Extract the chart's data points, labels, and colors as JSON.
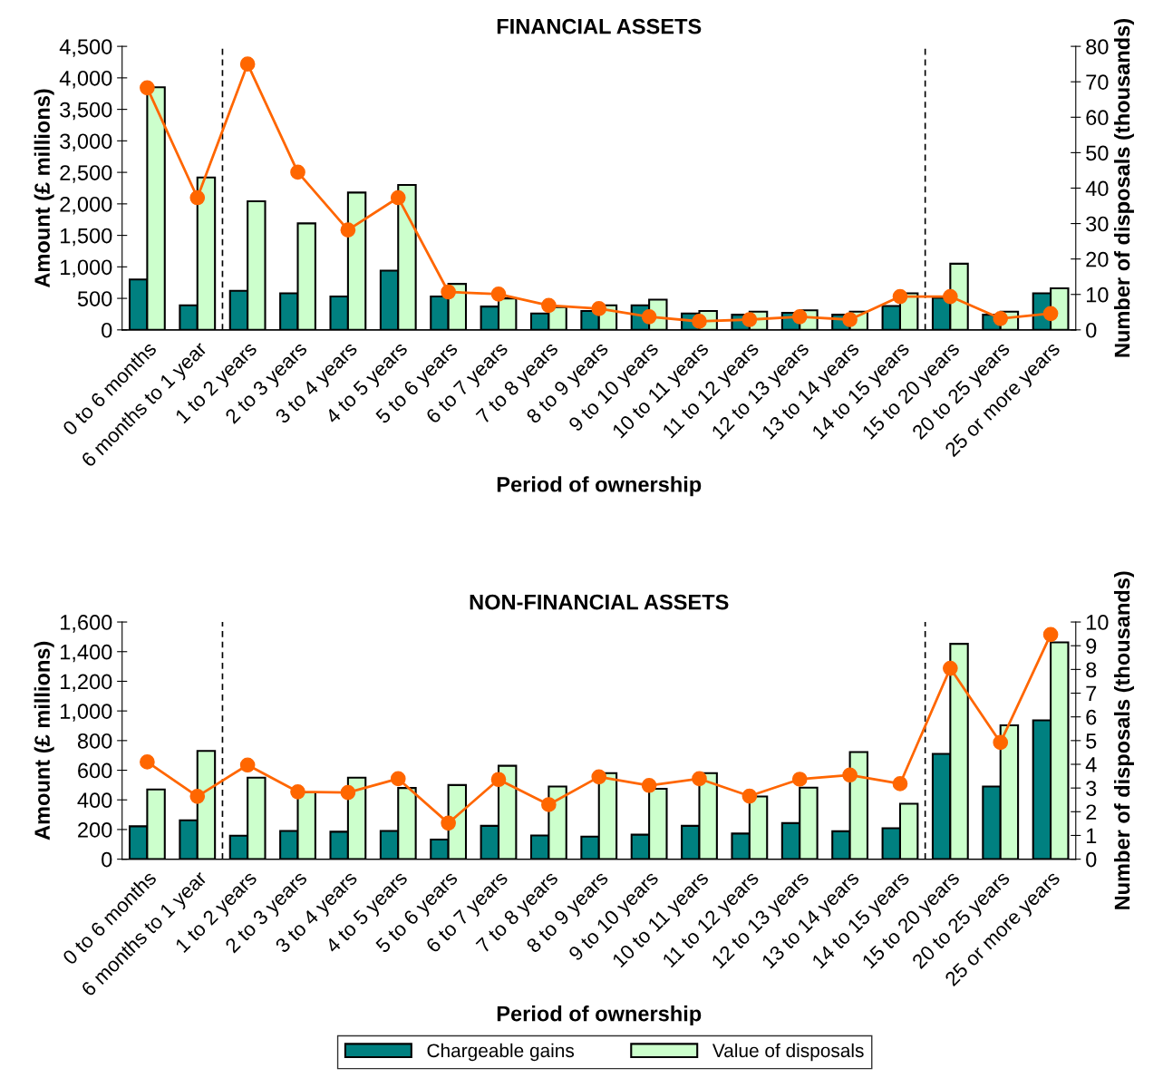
{
  "chart_data": [
    {
      "type": "bar",
      "title": "FINANCIAL ASSETS",
      "xlabel": "Period of ownership",
      "ylabel": "Amount (£ millions)",
      "y2label": "Number of disposals (thousands)",
      "categories": [
        "0 to 6 months",
        "6 months to 1 year",
        "1 to 2 years",
        "2 to 3 years",
        "3 to 4 years",
        "4 to 5 years",
        "5 to 6 years",
        "6 to 7 years",
        "7 to 8 years",
        "8 to 9 years",
        "9 to 10 years",
        "10 to 11 years",
        "11 to 12 years",
        "12 to 13 years",
        "13 to 14 years",
        "14 to 15 years",
        "15 to 20 years",
        "20 to 25 years",
        "25 or more years"
      ],
      "series": [
        {
          "name": "Chargeable gains",
          "color": "#008080",
          "values": [
            800,
            390,
            620,
            580,
            530,
            940,
            530,
            370,
            260,
            300,
            390,
            260,
            240,
            270,
            240,
            380,
            510,
            240,
            580
          ]
        },
        {
          "name": "Value of disposals",
          "color": "#ccffcc",
          "values": [
            3850,
            2420,
            2040,
            1690,
            2180,
            2300,
            730,
            500,
            360,
            390,
            480,
            300,
            290,
            310,
            290,
            580,
            1050,
            290,
            660
          ]
        },
        {
          "type": "line",
          "axis": "y2",
          "color": "#ff6600",
          "marker": "circle",
          "values": [
            68.3,
            37.3,
            75,
            44.5,
            28.2,
            37.3,
            10.7,
            10.1,
            6.9,
            6.0,
            3.7,
            2.4,
            2.9,
            3.7,
            2.9,
            9.4,
            9.4,
            3.2,
            4.6
          ]
        }
      ],
      "ylim": [
        0,
        4500
      ],
      "yticks": [
        0,
        {
          "value": 500,
          "label": "500"
        },
        {
          "value": 1000,
          "label": "1,000"
        },
        {
          "value": 1500,
          "label": "1,500"
        },
        {
          "value": 2000,
          "label": "2,000"
        },
        {
          "value": 2500,
          "label": "2,500"
        },
        {
          "value": 3000,
          "label": "3,000"
        },
        {
          "value": 3500,
          "label": "3,500"
        },
        {
          "value": 4000,
          "label": "4,000"
        },
        {
          "value": 4500,
          "label": "4,500"
        }
      ],
      "y2lim": [
        0,
        80
      ],
      "y2ticks": [
        0,
        10,
        20,
        30,
        40,
        50,
        60,
        70,
        80
      ],
      "grid": false,
      "legend": "bottom"
    },
    {
      "type": "bar",
      "title": "NON-FINANCIAL ASSETS",
      "xlabel": "Period of ownership",
      "ylabel": "Amount (£ millions)",
      "y2label": "Number of disposals (thousands)",
      "categories": [
        "0 to 6 months",
        "6 months to 1 year",
        "1 to 2 years",
        "2 to 3 years",
        "3 to 4 years",
        "4 to 5 years",
        "5 to 6 years",
        "6 to 7 years",
        "7 to 8 years",
        "8 to 9 years",
        "9 to 10 years",
        "10 to 11 years",
        "11 to 12 years",
        "12 to 13 years",
        "13 to 14 years",
        "14 to 15 years",
        "15 to 20 years",
        "20 to 25 years",
        "25 or more years"
      ],
      "series": [
        {
          "name": "Chargeable gains",
          "color": "#008080",
          "values": [
            222,
            262,
            158,
            190,
            185,
            190,
            132,
            225,
            160,
            152,
            165,
            225,
            173,
            243,
            188,
            209,
            710,
            490,
            937
          ]
        },
        {
          "name": "Value of disposals",
          "color": "#ccffcc",
          "values": [
            470,
            730,
            550,
            450,
            550,
            480,
            500,
            630,
            490,
            580,
            475,
            580,
            423,
            483,
            723,
            374,
            1453,
            903,
            1463
          ]
        },
        {
          "type": "line",
          "axis": "y2",
          "color": "#ff6600",
          "marker": "circle",
          "values": [
            4.1,
            2.65,
            3.97,
            2.84,
            2.81,
            3.39,
            1.52,
            3.36,
            2.3,
            3.47,
            3.11,
            3.39,
            2.66,
            3.37,
            3.55,
            3.18,
            8.05,
            4.92,
            9.47
          ]
        }
      ],
      "ylim": [
        0,
        1600
      ],
      "yticks": [
        0,
        200,
        400,
        600,
        800,
        {
          "value": 1000,
          "label": "1,000"
        },
        {
          "value": 1200,
          "label": "1,200"
        },
        {
          "value": 1400,
          "label": "1,400"
        },
        {
          "value": 1600,
          "label": "1,600"
        }
      ],
      "y2lim": [
        0,
        10
      ],
      "y2ticks": [
        0,
        1,
        2,
        3,
        4,
        5,
        6,
        7,
        8,
        9,
        10
      ],
      "grid": false,
      "legend": "bottom"
    }
  ]
}
